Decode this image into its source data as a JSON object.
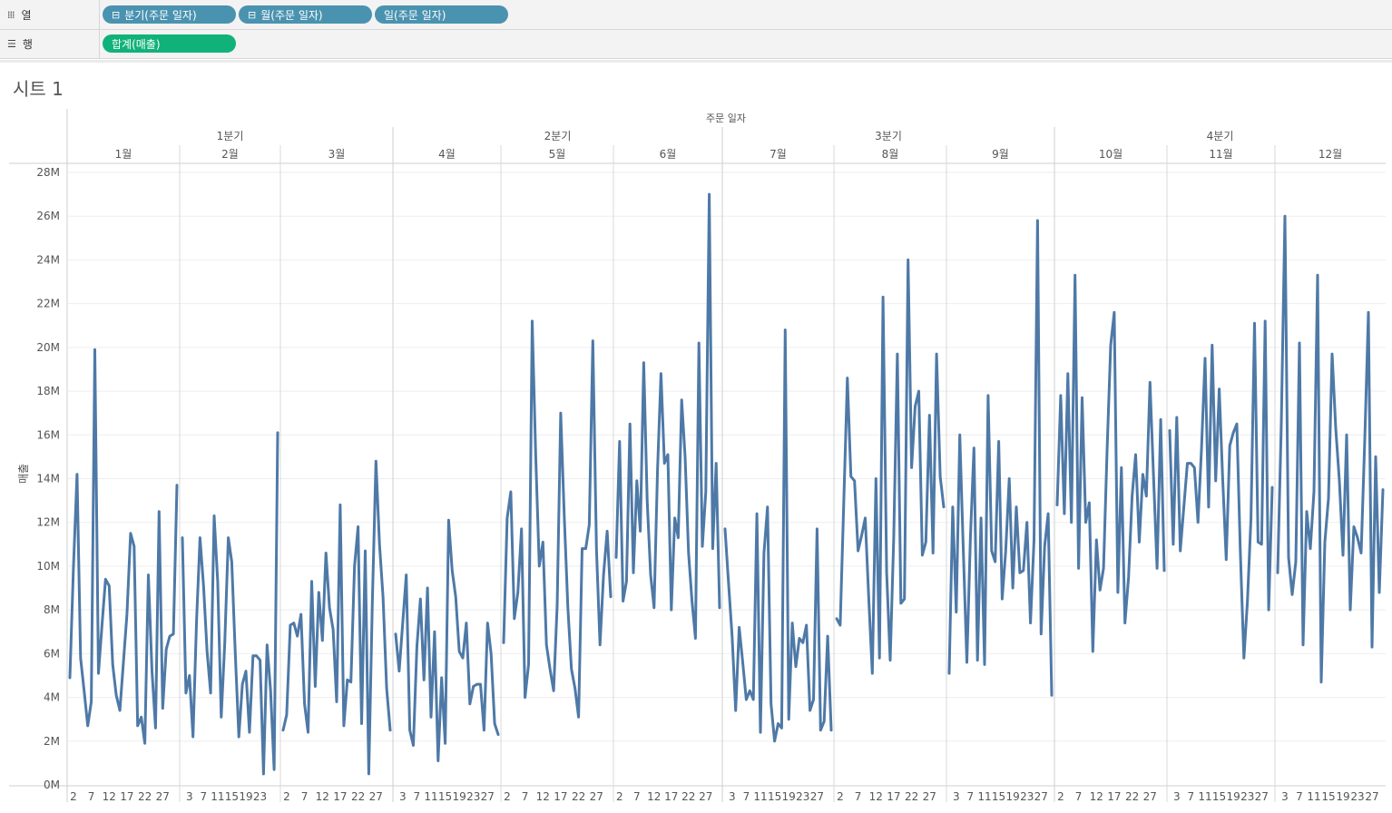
{
  "shelves": {
    "columns": {
      "label": "열",
      "icon": "columns-shelf-icon",
      "pills": [
        {
          "label": "분기(주문 일자)",
          "prefix": "⊟"
        },
        {
          "label": "월(주문 일자)",
          "prefix": "⊟"
        },
        {
          "label": "일(주문 일자)",
          "prefix": ""
        }
      ]
    },
    "rows": {
      "label": "행",
      "icon": "rows-shelf-icon",
      "pills": [
        {
          "label": "합계(매출)"
        }
      ]
    }
  },
  "sheet": {
    "title": "시트 1"
  },
  "colors": {
    "line": "#4e79a7",
    "pill_dimension": "#4a93b0",
    "pill_measure": "#10b27a"
  },
  "chart_data": {
    "type": "line",
    "header_title": "주문 일자",
    "ylabel": "매출",
    "ylim": [
      0,
      28000000
    ],
    "yticks": [
      "0M",
      "2M",
      "4M",
      "6M",
      "8M",
      "10M",
      "12M",
      "14M",
      "16M",
      "18M",
      "20M",
      "22M",
      "24M",
      "26M",
      "28M"
    ],
    "quarters": [
      "1분기",
      "2분기",
      "3분기",
      "4분기"
    ],
    "months": [
      {
        "label": "1월",
        "quarter": 0,
        "ticks": [
          "2",
          "7",
          "12",
          "17",
          "22",
          "27"
        ],
        "values": [
          4.9,
          9.9,
          14.2,
          5.8,
          4.3,
          2.7,
          3.8,
          19.9,
          5.1,
          7.3,
          9.4,
          9.1,
          5.5,
          4.1,
          3.4,
          5.6,
          7.8,
          11.5,
          10.9,
          2.7,
          3.1,
          1.9,
          9.6,
          5.2,
          2.6,
          12.5,
          3.5,
          6.2,
          6.8,
          6.9,
          13.7
        ]
      },
      {
        "label": "2월",
        "quarter": 0,
        "ticks": [
          "3",
          "7",
          "11",
          "15",
          "19",
          "23"
        ],
        "values": [
          11.3,
          4.2,
          5.0,
          2.2,
          7.5,
          11.3,
          9.1,
          6.1,
          4.2,
          12.3,
          9.3,
          3.1,
          6.5,
          11.3,
          10.2,
          6.0,
          2.2,
          4.6,
          5.2,
          2.4,
          5.9,
          5.9,
          5.7,
          0.5,
          6.4,
          4.3,
          0.7,
          16.1
        ]
      },
      {
        "label": "3월",
        "quarter": 0,
        "ticks": [
          "2",
          "7",
          "12",
          "17",
          "22",
          "27"
        ],
        "values": [
          2.5,
          3.2,
          7.3,
          7.4,
          6.8,
          7.8,
          3.7,
          2.4,
          9.3,
          4.5,
          8.8,
          6.6,
          10.6,
          8.1,
          7.1,
          3.8,
          12.8,
          2.7,
          4.8,
          4.7,
          10.0,
          11.8,
          2.8,
          10.7,
          0.5,
          8.3,
          14.8,
          11.0,
          8.6,
          4.4,
          2.5
        ]
      },
      {
        "label": "4월",
        "quarter": 1,
        "ticks": [
          "3",
          "7",
          "11",
          "15",
          "19",
          "23",
          "27"
        ],
        "values": [
          6.9,
          5.2,
          7.4,
          9.6,
          2.5,
          1.8,
          6.3,
          8.5,
          4.8,
          9.0,
          3.1,
          7.0,
          1.1,
          4.9,
          1.9,
          12.1,
          9.8,
          8.6,
          6.1,
          5.8,
          7.4,
          3.7,
          4.5,
          4.6,
          4.6,
          2.5,
          7.4,
          6.0,
          2.8,
          2.3
        ]
      },
      {
        "label": "5월",
        "quarter": 1,
        "ticks": [
          "2",
          "7",
          "12",
          "17",
          "22",
          "27"
        ],
        "values": [
          6.5,
          12.2,
          13.4,
          7.6,
          8.8,
          11.7,
          4.0,
          5.5,
          21.2,
          15.0,
          10.0,
          11.1,
          6.4,
          5.3,
          4.3,
          8.2,
          17.0,
          12.2,
          8.1,
          5.3,
          4.4,
          3.1,
          10.8,
          10.8,
          11.9,
          20.3,
          10.8,
          6.4,
          9.6,
          11.6,
          8.6
        ]
      },
      {
        "label": "6월",
        "quarter": 1,
        "ticks": [
          "2",
          "7",
          "12",
          "17",
          "22",
          "27"
        ],
        "values": [
          10.4,
          15.7,
          8.4,
          9.3,
          16.5,
          9.7,
          13.9,
          11.6,
          19.3,
          13.0,
          9.6,
          8.1,
          14.4,
          18.8,
          14.7,
          15.1,
          8.0,
          12.2,
          11.3,
          17.6,
          15.0,
          10.6,
          8.4,
          6.7,
          20.2,
          10.9,
          13.4,
          27.0,
          10.8,
          14.7,
          8.1
        ]
      },
      {
        "label": "7월",
        "quarter": 2,
        "ticks": [
          "3",
          "7",
          "11",
          "15",
          "19",
          "23",
          "27"
        ],
        "values": [
          11.7,
          9.2,
          6.8,
          3.4,
          7.2,
          5.6,
          3.9,
          4.3,
          3.9,
          12.4,
          2.4,
          10.6,
          12.7,
          3.7,
          2.0,
          2.8,
          2.6,
          20.8,
          3.0,
          7.4,
          5.4,
          6.7,
          6.5,
          7.3,
          3.4,
          3.9,
          11.7,
          2.5,
          2.9,
          6.8,
          2.5
        ]
      },
      {
        "label": "8월",
        "quarter": 2,
        "ticks": [
          "2",
          "7",
          "12",
          "17",
          "22",
          "27"
        ],
        "values": [
          7.6,
          7.3,
          13.0,
          18.6,
          14.1,
          13.9,
          10.7,
          11.4,
          12.2,
          8.5,
          5.1,
          14.0,
          5.8,
          22.3,
          9.7,
          5.7,
          11.3,
          19.7,
          8.3,
          8.5,
          24.0,
          14.5,
          17.3,
          18.0,
          10.5,
          11.1,
          16.9,
          10.6,
          19.7,
          14.1,
          12.7
        ]
      },
      {
        "label": "9월",
        "quarter": 2,
        "ticks": [
          "3",
          "7",
          "11",
          "15",
          "19",
          "23",
          "27"
        ],
        "values": [
          5.1,
          12.7,
          7.9,
          16.0,
          10.7,
          5.6,
          11.3,
          15.4,
          5.7,
          12.2,
          5.5,
          17.8,
          10.7,
          10.2,
          15.7,
          8.5,
          10.7,
          14.0,
          9.0,
          12.7,
          9.7,
          9.8,
          12.0,
          7.4,
          11.2,
          25.8,
          6.9,
          10.9,
          12.4,
          4.1
        ]
      },
      {
        "label": "10월",
        "quarter": 3,
        "ticks": [
          "2",
          "7",
          "12",
          "17",
          "22",
          "27"
        ],
        "values": [
          12.8,
          17.8,
          12.4,
          18.8,
          12.0,
          23.3,
          9.9,
          17.7,
          12.0,
          12.9,
          6.1,
          11.2,
          8.9,
          9.9,
          15.4,
          20.1,
          21.6,
          8.8,
          14.5,
          7.4,
          9.5,
          13.2,
          15.1,
          11.1,
          14.2,
          13.2,
          18.4,
          14.1,
          9.9,
          16.7,
          9.8
        ]
      },
      {
        "label": "11월",
        "quarter": 3,
        "ticks": [
          "3",
          "7",
          "11",
          "15",
          "19",
          "23",
          "27"
        ],
        "values": [
          16.2,
          11.0,
          16.8,
          10.7,
          12.7,
          14.7,
          14.7,
          14.5,
          12.0,
          15.4,
          19.5,
          12.7,
          20.1,
          13.9,
          18.1,
          14.0,
          10.3,
          15.5,
          16.1,
          16.5,
          10.6,
          5.8,
          8.4,
          12.2,
          21.1,
          11.1,
          11.0,
          21.2,
          8.0,
          13.6
        ]
      },
      {
        "label": "12월",
        "quarter": 3,
        "ticks": [
          "3",
          "7",
          "11",
          "15",
          "19",
          "23",
          "27"
        ],
        "values": [
          9.7,
          16.5,
          26.0,
          10.4,
          8.7,
          10.2,
          20.2,
          6.4,
          12.5,
          10.8,
          13.4,
          23.3,
          4.7,
          11.1,
          13.1,
          19.7,
          16.3,
          13.9,
          10.5,
          16.0,
          8.0,
          11.8,
          11.3,
          10.6,
          15.8,
          21.6,
          6.3,
          15.0,
          8.8,
          13.5
        ]
      }
    ]
  }
}
